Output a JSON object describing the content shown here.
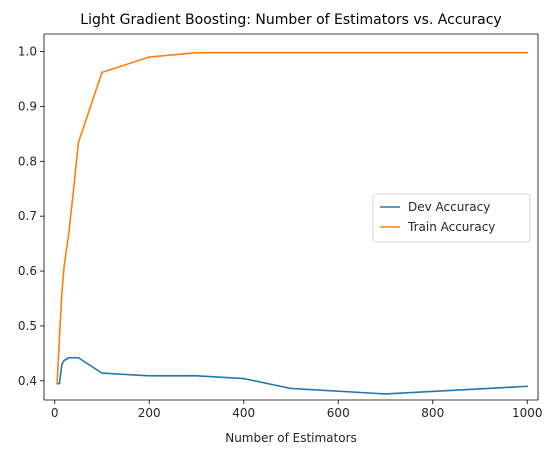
{
  "chart_data": {
    "type": "line",
    "title": "Light Gradient Boosting: Number of Estimators vs. Accuracy",
    "xlabel": "Number of Estimators",
    "ylabel": "",
    "xlim": [
      -22.75,
      1022.75
    ],
    "ylim": [
      0.365,
      1.032
    ],
    "xticks": [
      0,
      200,
      400,
      600,
      800,
      1000
    ],
    "yticks": [
      0.4,
      0.5,
      0.6,
      0.7,
      0.8,
      0.9,
      1.0
    ],
    "xtick_labels": [
      "0",
      "200",
      "400",
      "600",
      "800",
      "1000"
    ],
    "ytick_labels": [
      "0.4",
      "0.5",
      "0.6",
      "0.7",
      "0.8",
      "0.9",
      "1.0"
    ],
    "grid": false,
    "legend_position": "center-right",
    "series": [
      {
        "name": "Dev Accuracy",
        "color": "#1f77b4",
        "x": [
          5,
          10,
          15,
          20,
          30,
          40,
          50,
          100,
          200,
          300,
          400,
          500,
          700,
          1000
        ],
        "y": [
          0.395,
          0.395,
          0.43,
          0.437,
          0.442,
          0.442,
          0.442,
          0.414,
          0.409,
          0.409,
          0.404,
          0.386,
          0.376,
          0.39
        ]
      },
      {
        "name": "Train Accuracy",
        "color": "#ff7f0e",
        "x": [
          5,
          10,
          15,
          20,
          30,
          40,
          50,
          100,
          200,
          300,
          400,
          500,
          700,
          1000
        ],
        "y": [
          0.395,
          0.48,
          0.56,
          0.61,
          0.67,
          0.75,
          0.834,
          0.962,
          0.99,
          0.998,
          0.998,
          0.998,
          0.998,
          0.998
        ]
      }
    ]
  }
}
